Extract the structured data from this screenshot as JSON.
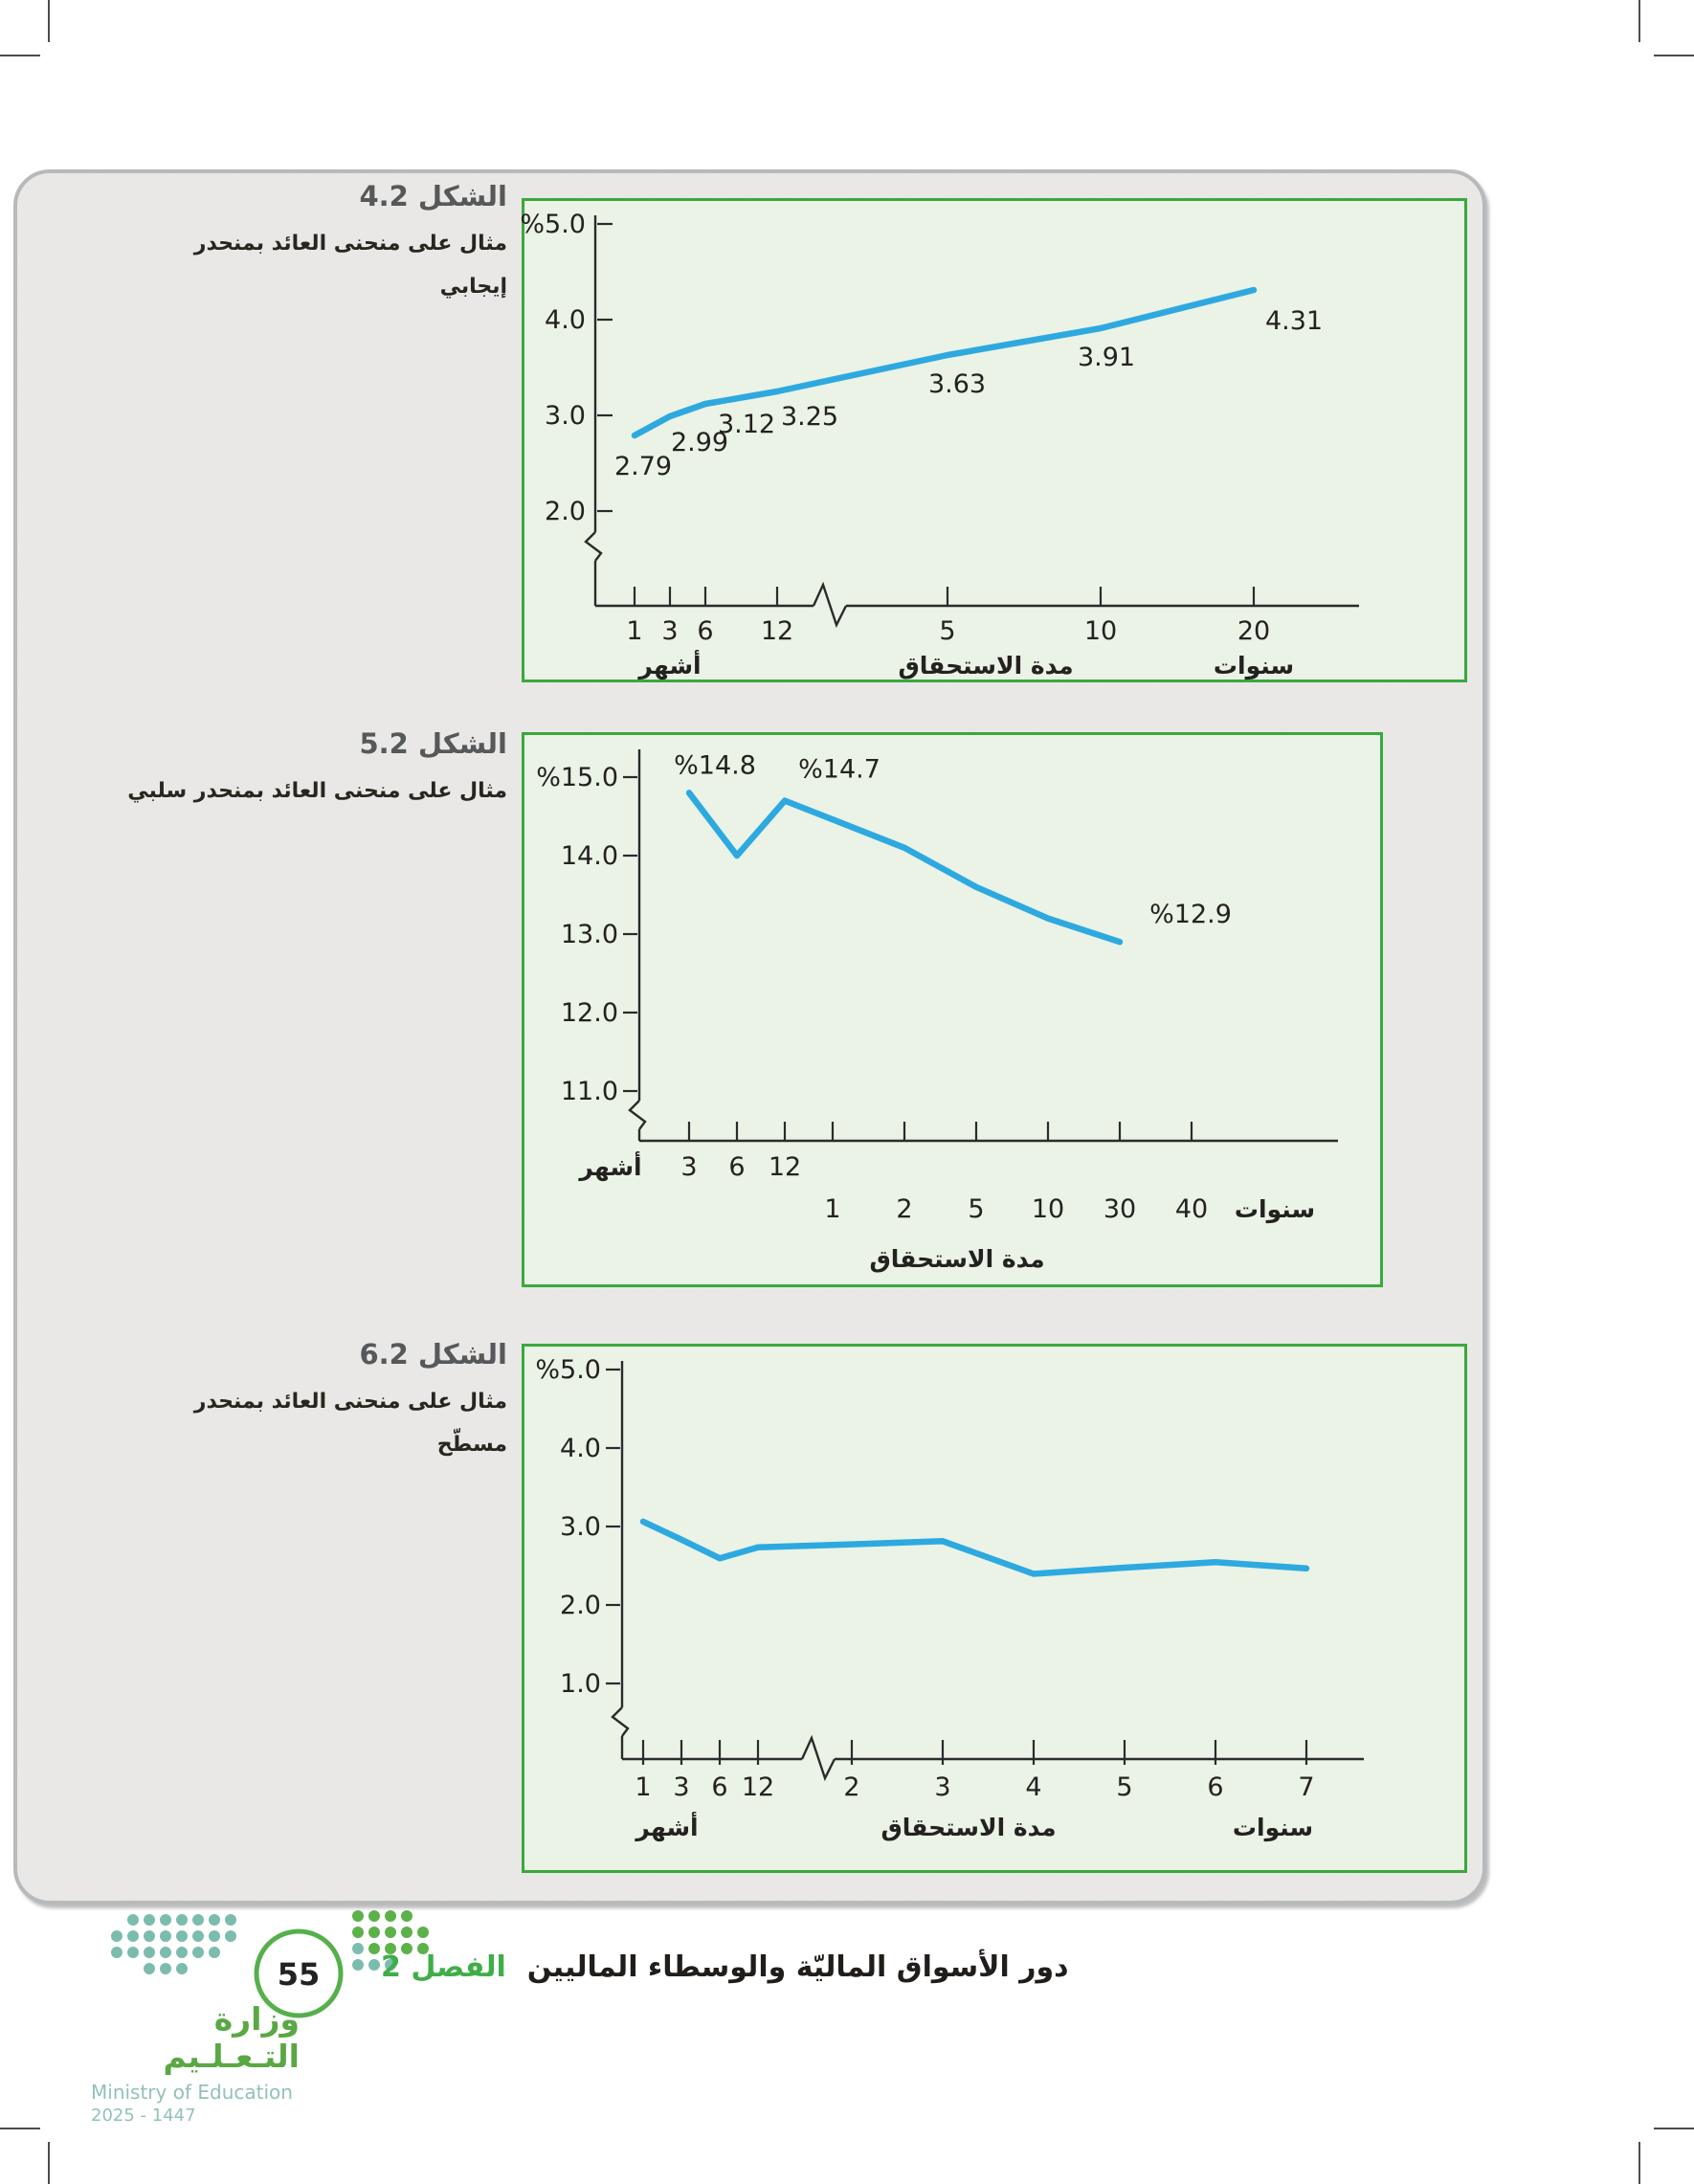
{
  "figures": [
    {
      "title": "الشكل 4.2",
      "subtitle_lines": [
        "مثال على منحنى العائد بمنحدر",
        "إيجابي"
      ]
    },
    {
      "title": "الشكل 5.2",
      "subtitle_lines": [
        "مثال على منحنى العائد بمنحدر سلبي"
      ]
    },
    {
      "title": "الشكل 6.2",
      "subtitle_lines": [
        "مثال على منحنى العائد بمنحدر",
        "مسطّح"
      ]
    }
  ],
  "chart_data": [
    {
      "type": "line",
      "figure": "4.2",
      "title": "مثال على منحنى العائد بمنحدر إيجابي",
      "x_ticks": [
        "1",
        "3",
        "6",
        "12",
        "5",
        "10",
        "20"
      ],
      "x_tick_units": [
        "months",
        "months",
        "months",
        "months",
        "years",
        "years",
        "years"
      ],
      "values": [
        2.79,
        2.99,
        3.12,
        3.25,
        3.63,
        3.91,
        4.31
      ],
      "point_labels": [
        "2.79",
        "2.99",
        "3.12",
        "3.25",
        "3.63",
        "3.91",
        "4.31"
      ],
      "y_tick_labels": [
        "%5.0",
        "4.0",
        "3.0",
        "2.0"
      ],
      "y_tick_values": [
        5.0,
        4.0,
        3.0,
        2.0
      ],
      "ylim": [
        2.0,
        5.0
      ],
      "months_caption": "أشهر",
      "years_caption": "سنوات",
      "xlabel": "مدة الاستحقاق",
      "line_color": "#2ea9e0",
      "has_y_axis_break": true,
      "has_x_axis_break": true,
      "grid": false,
      "legend": false
    },
    {
      "type": "line",
      "figure": "5.2",
      "title": "مثال على منحنى العائد بمنحدر سلبي",
      "x_ticks": [
        "3",
        "6",
        "12",
        "1",
        "2",
        "5",
        "10",
        "30",
        "40"
      ],
      "x_tick_units": [
        "months",
        "months",
        "months",
        "years",
        "years",
        "years",
        "years",
        "years",
        "years"
      ],
      "values": [
        14.8,
        14.0,
        14.7,
        null,
        14.1,
        13.6,
        13.2,
        12.9,
        null
      ],
      "point_labels": [
        "%14.8",
        null,
        "%14.7",
        null,
        null,
        null,
        null,
        "%12.9",
        null
      ],
      "y_tick_labels": [
        "%15.0",
        "14.0",
        "13.0",
        "12.0",
        "11.0"
      ],
      "y_tick_values": [
        15.0,
        14.0,
        13.0,
        12.0,
        11.0
      ],
      "ylim": [
        11.0,
        15.0
      ],
      "months_caption": "أشهر",
      "years_caption": "سنوات",
      "xlabel": "مدة الاستحقاق",
      "line_color": "#2ea9e0",
      "has_y_axis_break": true,
      "has_x_axis_break": false,
      "grid": false,
      "legend": false
    },
    {
      "type": "line",
      "figure": "6.2",
      "title": "مثال على منحنى العائد بمنحدر مسطّح",
      "x_ticks": [
        "1",
        "3",
        "6",
        "12",
        "2",
        "3",
        "4",
        "5",
        "6",
        "7"
      ],
      "x_tick_units": [
        "months",
        "months",
        "months",
        "months",
        "years",
        "years",
        "years",
        "years",
        "years",
        "years"
      ],
      "values": [
        3.05,
        2.82,
        2.58,
        2.72,
        2.76,
        2.8,
        2.38,
        2.46,
        2.53,
        2.45
      ],
      "point_labels": [
        null,
        null,
        null,
        null,
        null,
        null,
        null,
        null,
        null,
        null
      ],
      "y_tick_labels": [
        "%5.0",
        "4.0",
        "3.0",
        "2.0",
        "1.0"
      ],
      "y_tick_values": [
        5.0,
        4.0,
        3.0,
        2.0,
        1.0
      ],
      "ylim": [
        1.0,
        5.0
      ],
      "months_caption": "أشهر",
      "years_caption": "سنوات",
      "xlabel": "مدة الاستحقاق",
      "line_color": "#2ea9e0",
      "has_y_axis_break": true,
      "has_x_axis_break": true,
      "grid": false,
      "legend": false
    }
  ],
  "footer": {
    "page_number": "55",
    "chapter_label": "الفصل 2",
    "chapter_title": "دور الأسواق الماليّة والوسطاء الماليين",
    "ministry_ar": "وزارة التـعـلـيم",
    "ministry_en": "Ministry of Education",
    "ministry_years": "2025 - 1447"
  },
  "colors": {
    "line": "#2ea9e0",
    "chart_border": "#3aa83d",
    "chart_bg": "#eaf3e6",
    "panel_bg": "#e9e8e6",
    "accent_green": "#3fae49",
    "logo_teal": "#7cbcae",
    "logo_green": "#5bb249"
  }
}
